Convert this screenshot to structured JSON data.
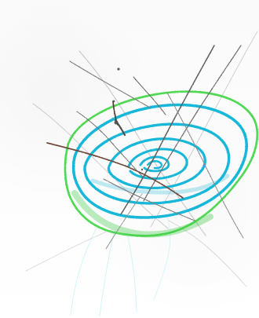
{
  "image": {
    "subject": "crayon scribble",
    "colors": {
      "cyan": "#16b7d9",
      "green": "#45d34a",
      "gray": "#7d7d7d",
      "brown": "#6f4a3c",
      "light_cyan": "#8fe4ef"
    }
  }
}
